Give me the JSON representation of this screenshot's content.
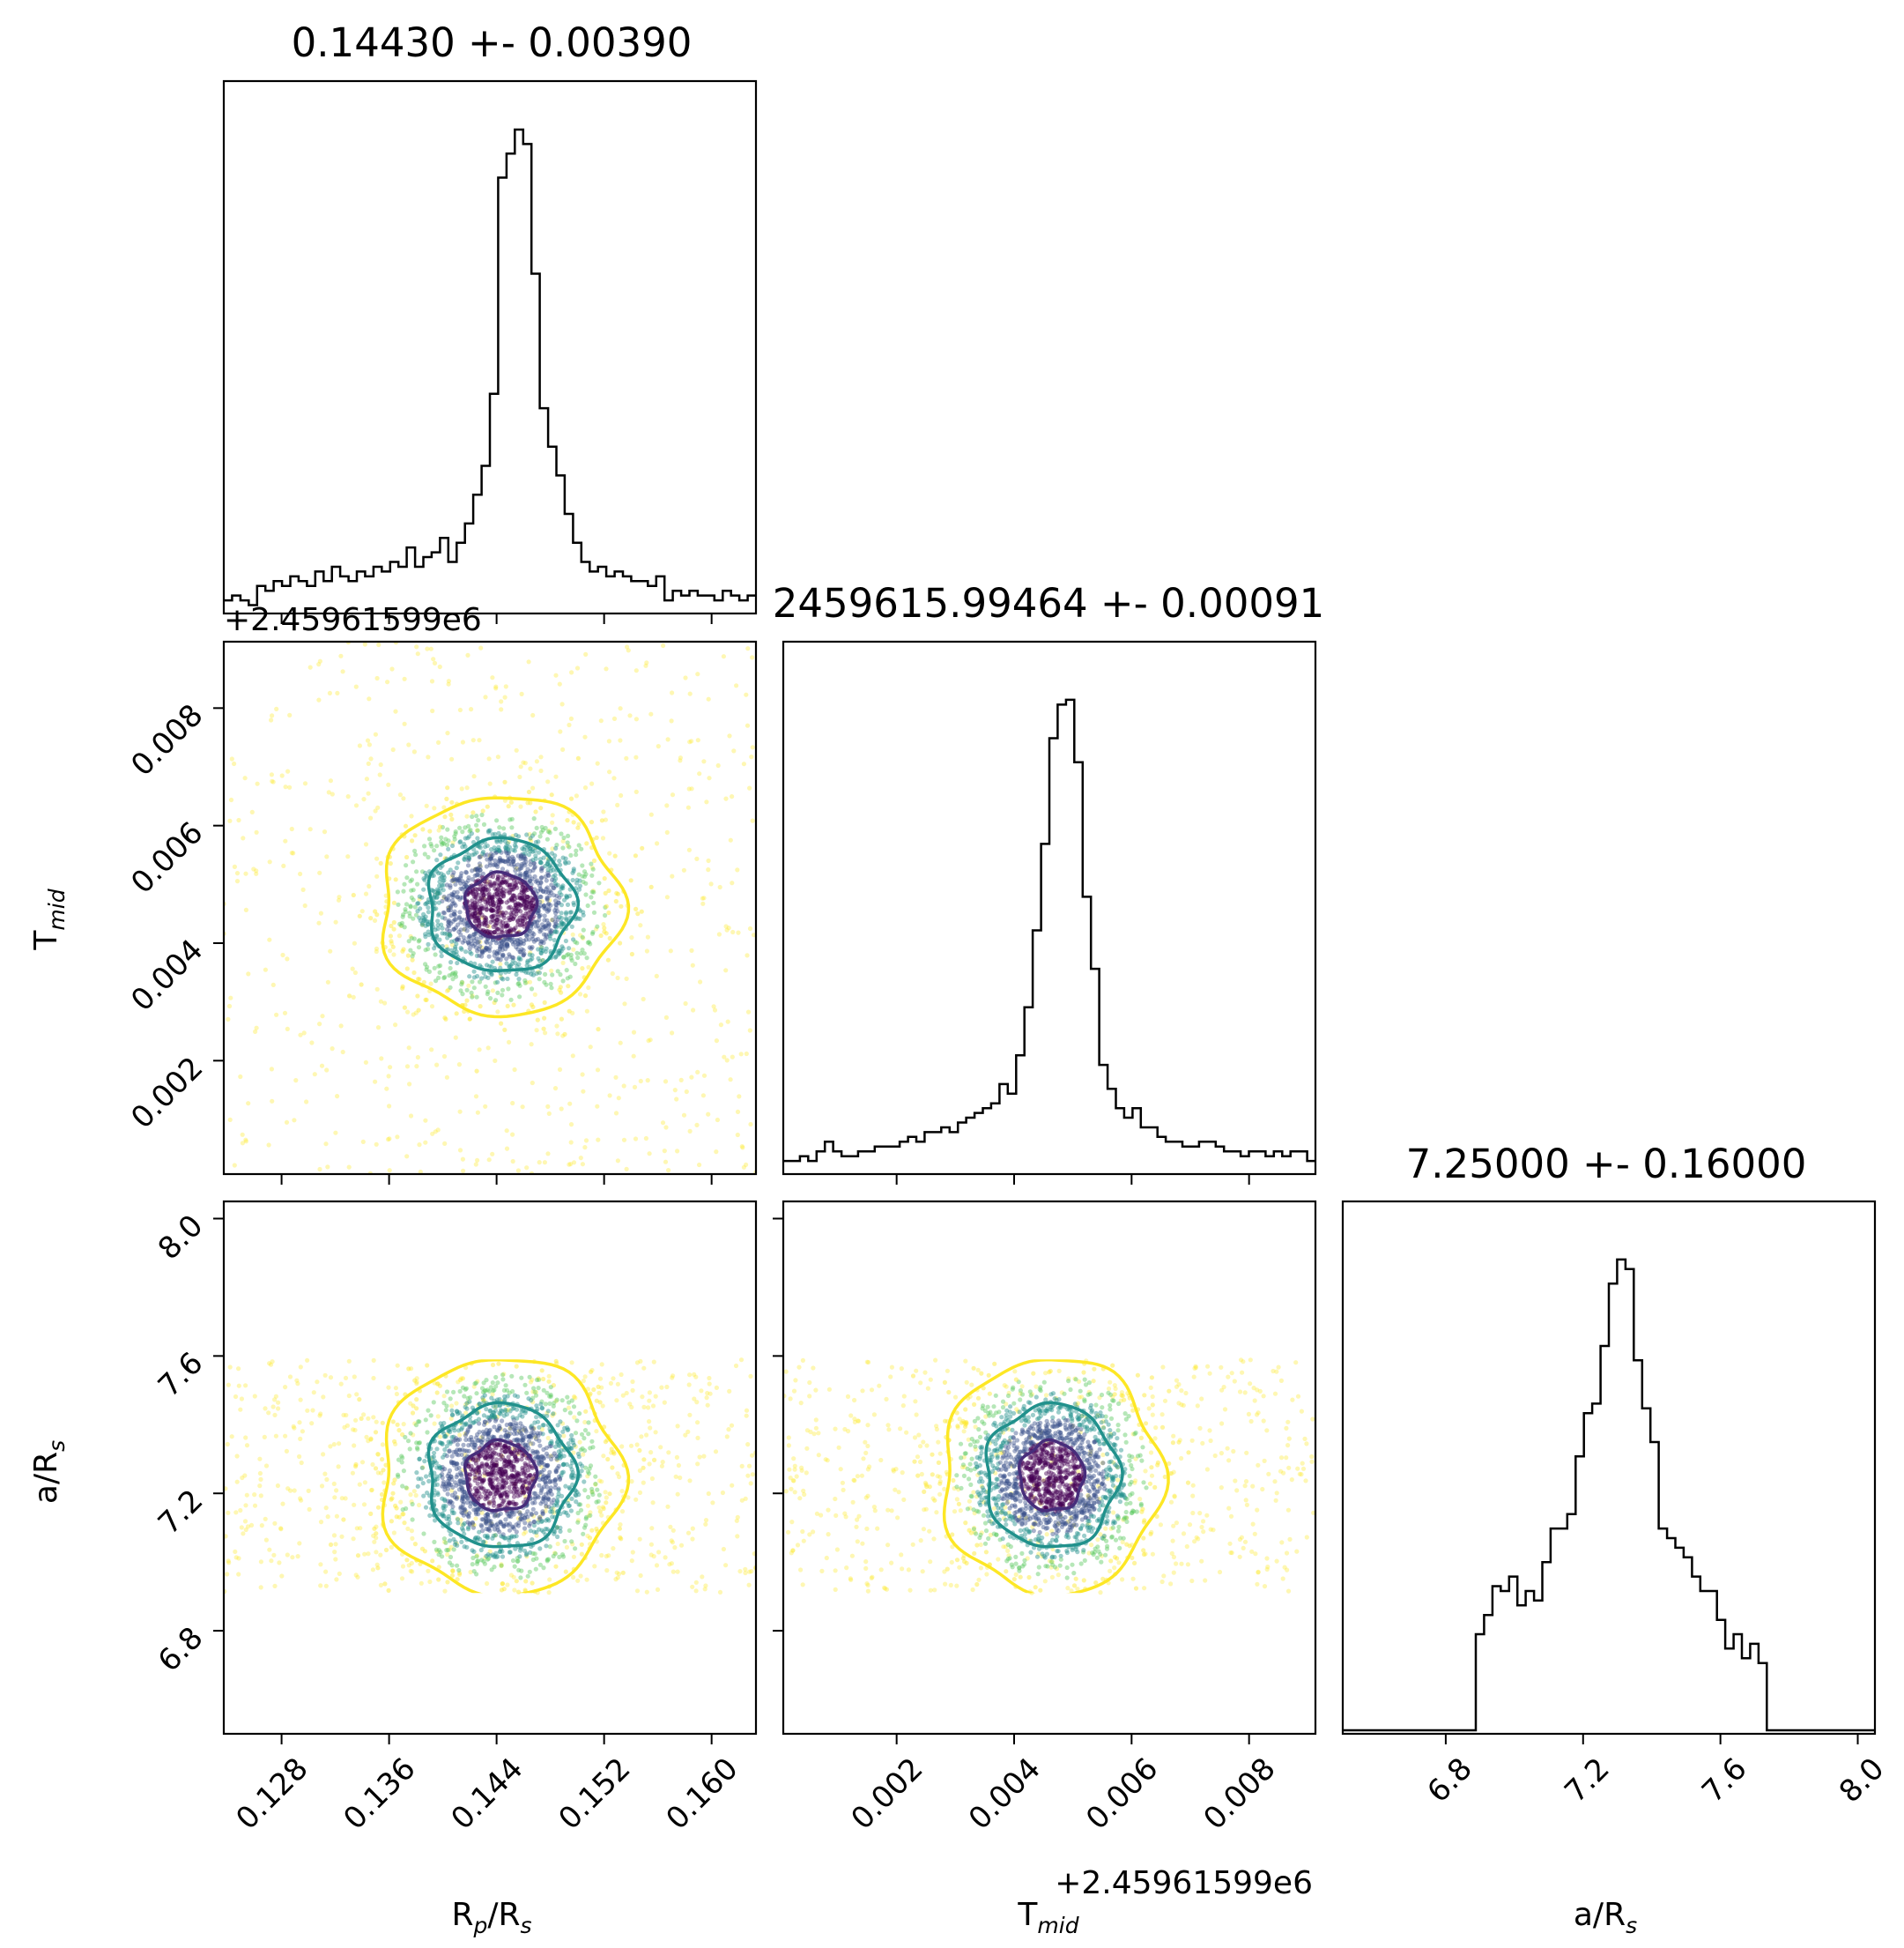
{
  "chart_data": {
    "type": "corner",
    "parameters": [
      "R_p/R_s",
      "T_mid",
      "a/R_s"
    ],
    "titles": [
      "0.14430 +- 0.00390",
      "2459615.99464 +- 0.00091",
      "7.25000 +- 0.16000"
    ],
    "axis_labels": {
      "x_rp": {
        "main": "R",
        "sub1": "p",
        "mid": "/R",
        "sub2": "s"
      },
      "x_tmid": {
        "main": "T",
        "sub1": "mid"
      },
      "x_ars": {
        "main": "a/R",
        "sub1": "s"
      },
      "y_tmid": {
        "main": "T",
        "sub1": "mid"
      },
      "y_ars": {
        "main": "a/R",
        "sub1": "s"
      }
    },
    "offset_text": "+2.45961599e6",
    "ranges": {
      "rp": [
        0.1237,
        0.1633
      ],
      "tmid": [
        7e-05,
        0.00913
      ],
      "ars": [
        6.5,
        8.05
      ]
    },
    "ticks": {
      "rp": [
        0.128,
        0.136,
        0.144,
        0.152,
        0.16
      ],
      "rp_labels": [
        "0.128",
        "0.136",
        "0.144",
        "0.152",
        "0.160"
      ],
      "tmid": [
        0.002,
        0.004,
        0.006,
        0.008
      ],
      "tmid_labels": [
        "0.002",
        "0.004",
        "0.006",
        "0.008"
      ],
      "ars": [
        6.8,
        7.2,
        7.6,
        8.0
      ],
      "ars_labels": [
        "6.8",
        "7.2",
        "7.6",
        "8.0"
      ]
    },
    "hist_rp": {
      "type": "step",
      "bins": 64,
      "peak_height": 1.0,
      "values": [
        0.02,
        0.03,
        0.02,
        0.01,
        0.05,
        0.04,
        0.06,
        0.05,
        0.07,
        0.06,
        0.05,
        0.08,
        0.06,
        0.09,
        0.07,
        0.06,
        0.08,
        0.07,
        0.09,
        0.08,
        0.1,
        0.09,
        0.13,
        0.09,
        0.11,
        0.12,
        0.15,
        0.1,
        0.14,
        0.18,
        0.24,
        0.3,
        0.45,
        0.9,
        0.95,
        1.0,
        0.97,
        0.7,
        0.42,
        0.34,
        0.28,
        0.2,
        0.14,
        0.1,
        0.08,
        0.09,
        0.07,
        0.08,
        0.07,
        0.06,
        0.06,
        0.05,
        0.07,
        0.02,
        0.04,
        0.03,
        0.04,
        0.03,
        0.03,
        0.02,
        0.04,
        0.03,
        0.02,
        0.03
      ]
    },
    "hist_tmid": {
      "type": "step",
      "bins": 64,
      "peak_height": 1.0,
      "values": [
        0.02,
        0.02,
        0.03,
        0.02,
        0.04,
        0.06,
        0.04,
        0.03,
        0.03,
        0.04,
        0.04,
        0.05,
        0.05,
        0.05,
        0.06,
        0.07,
        0.06,
        0.08,
        0.08,
        0.09,
        0.08,
        0.1,
        0.11,
        0.12,
        0.13,
        0.14,
        0.18,
        0.16,
        0.24,
        0.34,
        0.5,
        0.68,
        0.9,
        0.97,
        0.98,
        0.85,
        0.57,
        0.42,
        0.22,
        0.17,
        0.13,
        0.11,
        0.13,
        0.09,
        0.09,
        0.07,
        0.06,
        0.06,
        0.05,
        0.05,
        0.06,
        0.06,
        0.05,
        0.04,
        0.04,
        0.03,
        0.04,
        0.04,
        0.03,
        0.04,
        0.03,
        0.04,
        0.04,
        0.02
      ]
    },
    "hist_ars": {
      "type": "step",
      "bins": 64,
      "peak_height": 1.0,
      "values": [
        0,
        0,
        0,
        0,
        0,
        0,
        0,
        0,
        0,
        0,
        0,
        0,
        0,
        0,
        0,
        0,
        0.2,
        0.24,
        0.3,
        0.29,
        0.32,
        0.26,
        0.29,
        0.27,
        0.35,
        0.42,
        0.42,
        0.45,
        0.57,
        0.66,
        0.68,
        0.8,
        0.93,
        0.98,
        0.96,
        0.77,
        0.67,
        0.6,
        0.42,
        0.4,
        0.38,
        0.36,
        0.32,
        0.29,
        0.29,
        0.23,
        0.17,
        0.2,
        0.15,
        0.18,
        0.14,
        0,
        0,
        0,
        0,
        0,
        0,
        0,
        0,
        0,
        0,
        0,
        0,
        0
      ]
    },
    "contour_levels": [
      "0.5 sigma",
      "1 sigma",
      "2 sigma"
    ],
    "colors": {
      "hist": "#000000",
      "scatter_cmap": [
        "#440154",
        "#3b528b",
        "#21918c",
        "#5ec962",
        "#fde725"
      ],
      "contour_inner": "#472d7b",
      "contour_mid": "#21918c",
      "contour_outer": "#fde725"
    },
    "grid": false,
    "legend": "none"
  }
}
